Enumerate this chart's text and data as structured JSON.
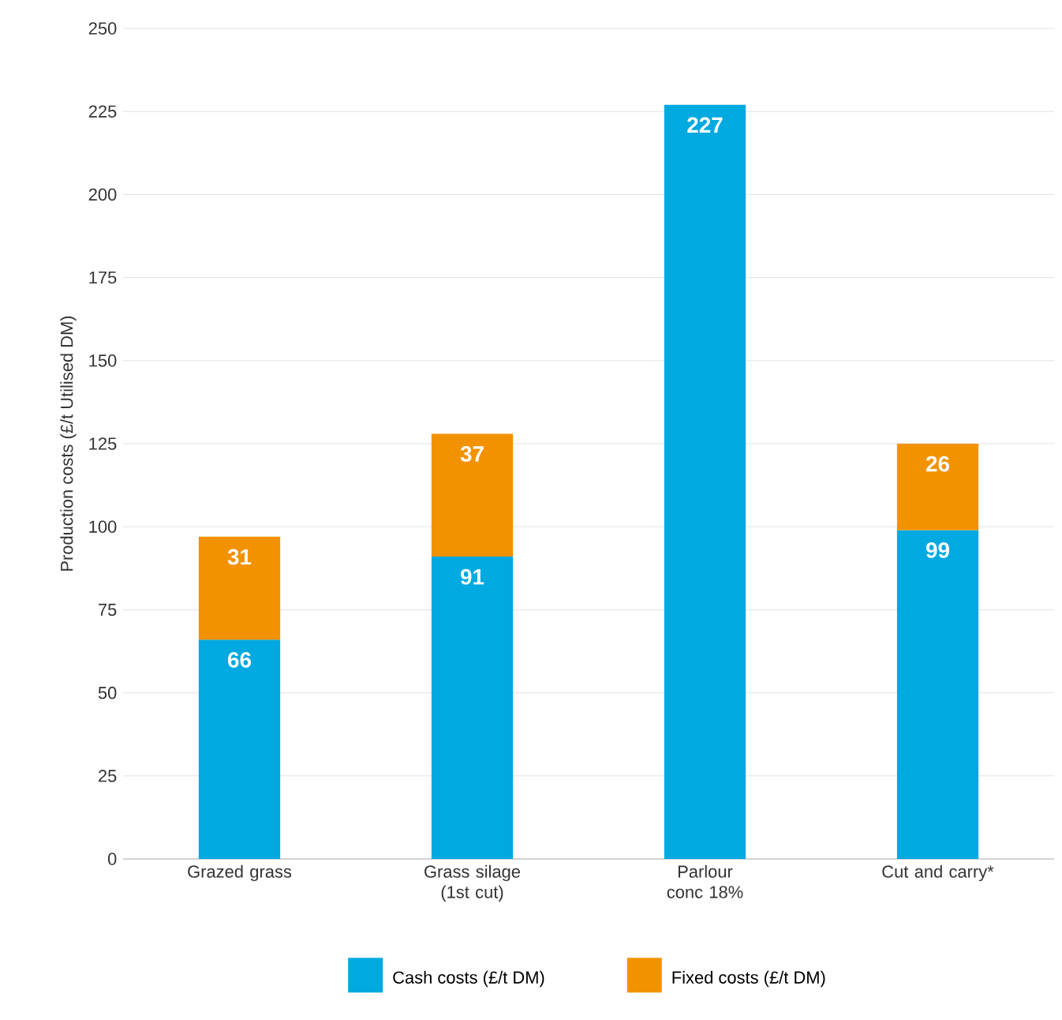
{
  "chart_data": {
    "type": "bar",
    "stacked": true,
    "ylabel": "Production costs (£/t Utilised DM)",
    "categories": [
      "Grazed grass",
      "Grass silage (1st cut)",
      "Parlour conc 18%",
      "Cut and carry*"
    ],
    "series": [
      {
        "name": "Cash costs (£/t DM)",
        "color": "#00a9e0",
        "values": [
          66,
          91,
          227,
          99
        ]
      },
      {
        "name": "Fixed costs (£/t DM)",
        "color": "#f39200",
        "values": [
          31,
          37,
          null,
          26
        ]
      }
    ],
    "ylim": [
      0,
      250
    ],
    "yticks": [
      0,
      25,
      50,
      75,
      100,
      125,
      150,
      175,
      200,
      225,
      250
    ],
    "grid": "y",
    "legend": "bottom",
    "data_labels": true
  }
}
